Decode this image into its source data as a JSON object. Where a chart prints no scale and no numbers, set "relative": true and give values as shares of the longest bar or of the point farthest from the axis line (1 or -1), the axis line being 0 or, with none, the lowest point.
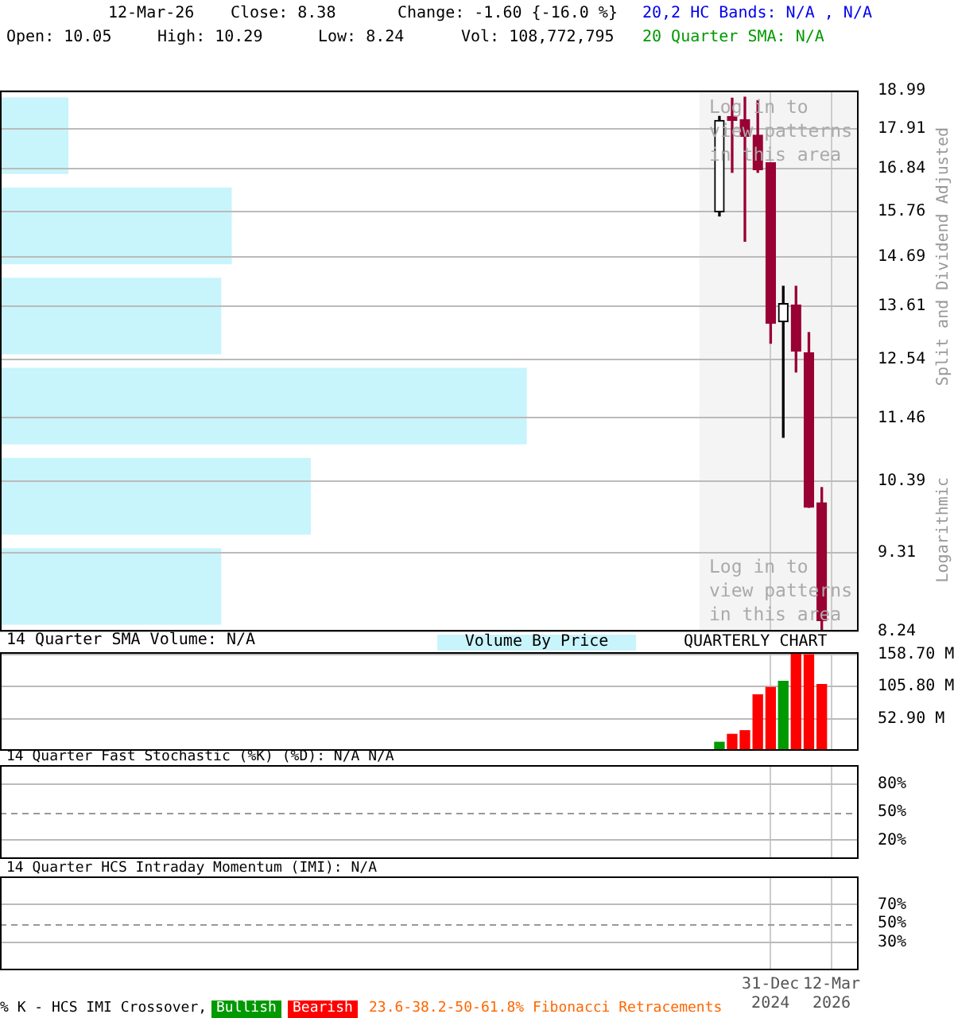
{
  "chart_data": [
    {
      "type": "candlestick",
      "x": [
        "2024-01-01",
        "2024-04-01",
        "2024-07-01",
        "2024-10-01",
        "2025-01-01",
        "2025-04-01",
        "2025-07-01",
        "2025-10-01",
        "2026-01-01"
      ],
      "ohlc": [
        [
          15.75,
          18.25,
          15.65,
          18.14
        ],
        [
          18.25,
          18.77,
          16.74,
          18.14
        ],
        [
          18.16,
          18.8,
          15.05,
          17.7
        ],
        [
          17.73,
          18.7,
          16.74,
          16.81
        ],
        [
          16.99,
          16.99,
          12.86,
          13.26
        ],
        [
          13.29,
          14.04,
          11.12,
          13.67
        ],
        [
          13.64,
          14.04,
          12.3,
          12.7
        ],
        [
          12.67,
          13.07,
          9.98,
          9.98
        ],
        [
          10.05,
          10.29,
          8.24,
          8.38
        ]
      ],
      "colors": [
        "#000000",
        "#990033",
        "#990033",
        "#990033",
        "#990033",
        "#000000",
        "#990033",
        "#990033",
        "#990033"
      ],
      "xlim": [
        "2009-12-07",
        "2026-09-21"
      ],
      "xticks": [
        {
          "value": "2024-12-31",
          "label": null
        },
        {
          "value": "2026-03-12",
          "label": null
        }
      ],
      "ylim": [
        8.24,
        18.99
      ],
      "yticks": [
        8.24,
        9.31,
        10.39,
        11.46,
        12.54,
        13.61,
        14.69,
        15.76,
        16.84,
        17.91,
        18.99
      ],
      "log": true,
      "grid": true,
      "tick_labels": "y",
      "bands": [
        {
          "axis": "x",
          "from": "2023-08-11",
          "to": "2026-09-21",
          "color": "#f4f4f4"
        }
      ],
      "annotations": [
        "12-Mar-26",
        "Close: 8.38",
        "Change: -1.60 {-16.0 %}",
        "Open: 10.05",
        "High: 10.29",
        "Low: 8.24",
        "Vol: 108,772,795",
        "20,2 HC Bands: N/A , N/A",
        "20 Quarter SMA: N/A",
        "Split and Dividend Adjusted",
        "Logarithmic",
        "Log in to view patterns in this area",
        "Log in to view patterns in this area"
      ]
    },
    {
      "type": "bar",
      "orientation": "horizontal",
      "relative": true,
      "title": "Volume By Price",
      "categories": [
        null,
        null,
        null,
        null,
        null,
        null
      ],
      "values": [
        0.13,
        0.44,
        0.42,
        1,
        0.59,
        0.42
      ],
      "color": "#c8f4fc"
    },
    {
      "type": "bar",
      "title": "14 Quarter SMA Volume: N/A",
      "annotations": [
        "QUARTERLY CHART"
      ],
      "x": [
        "2024-01-01",
        "2024-04-01",
        "2024-07-01",
        "2024-10-01",
        "2025-01-01",
        "2025-04-01",
        "2025-07-01",
        "2025-10-01",
        "2026-01-01"
      ],
      "values": [
        14,
        27,
        33,
        92,
        104,
        114,
        162,
        158,
        109
      ],
      "colors": [
        "#009900",
        "#ff0000",
        "#ff0000",
        "#ff0000",
        "#ff0000",
        "#009900",
        "#ff0000",
        "#ff0000",
        "#ff0000"
      ],
      "xlim": [
        "2009-12-07",
        "2026-09-21"
      ],
      "xticks": [
        {
          "value": "2024-12-31",
          "label": null
        },
        {
          "value": "2026-03-12",
          "label": null
        }
      ],
      "ylim": [
        0,
        162
      ],
      "yticks": [
        {
          "value": 52.9,
          "label": "52.90 M"
        },
        {
          "value": 105.8,
          "label": "105.80 M"
        },
        {
          "value": 158.7,
          "label": "158.70 M"
        }
      ],
      "grid": true,
      "tick_labels": "y"
    },
    {
      "type": "line",
      "title": "14 Quarter Fast Stochastic (%K) (%D): N/A  N/A",
      "xlim": [
        "2009-12-07",
        "2026-09-21"
      ],
      "xticks": [
        {
          "value": "2024-12-31",
          "label": null
        },
        {
          "value": "2026-03-12",
          "label": null
        }
      ],
      "ylim": [
        0,
        100
      ],
      "yticks": [
        {
          "value": 20,
          "label": "20%"
        },
        {
          "value": 50,
          "label": "50%"
        },
        {
          "value": 80,
          "label": "80%"
        }
      ],
      "ref_lines": [
        {
          "axis": "y",
          "value": 50,
          "line_style": "dashed"
        }
      ],
      "grid": true,
      "tick_labels": "y"
    },
    {
      "type": "line",
      "title": "14 Quarter HCS Intraday Momentum (IMI): N/A",
      "xlim": [
        "2009-12-07",
        "2026-09-21"
      ],
      "xticks": [
        {
          "value": "2024-12-31",
          "label": "31-Dec 2024"
        },
        {
          "value": "2026-03-12",
          "label": "12-Mar 2026"
        }
      ],
      "ylim": [
        0,
        100
      ],
      "yticks": [
        {
          "value": 30,
          "label": "30%"
        },
        {
          "value": 50,
          "label": "50%"
        },
        {
          "value": 70,
          "label": "70%"
        }
      ],
      "ref_lines": [
        {
          "axis": "y",
          "value": 50,
          "line_style": "dashed"
        }
      ],
      "grid": true,
      "annotations": [
        "% K - HCS IMI Crossover,",
        "Bullish",
        "Bearish",
        "23.6-38.2-50-61.8% Fibonacci Retracements"
      ]
    }
  ]
}
